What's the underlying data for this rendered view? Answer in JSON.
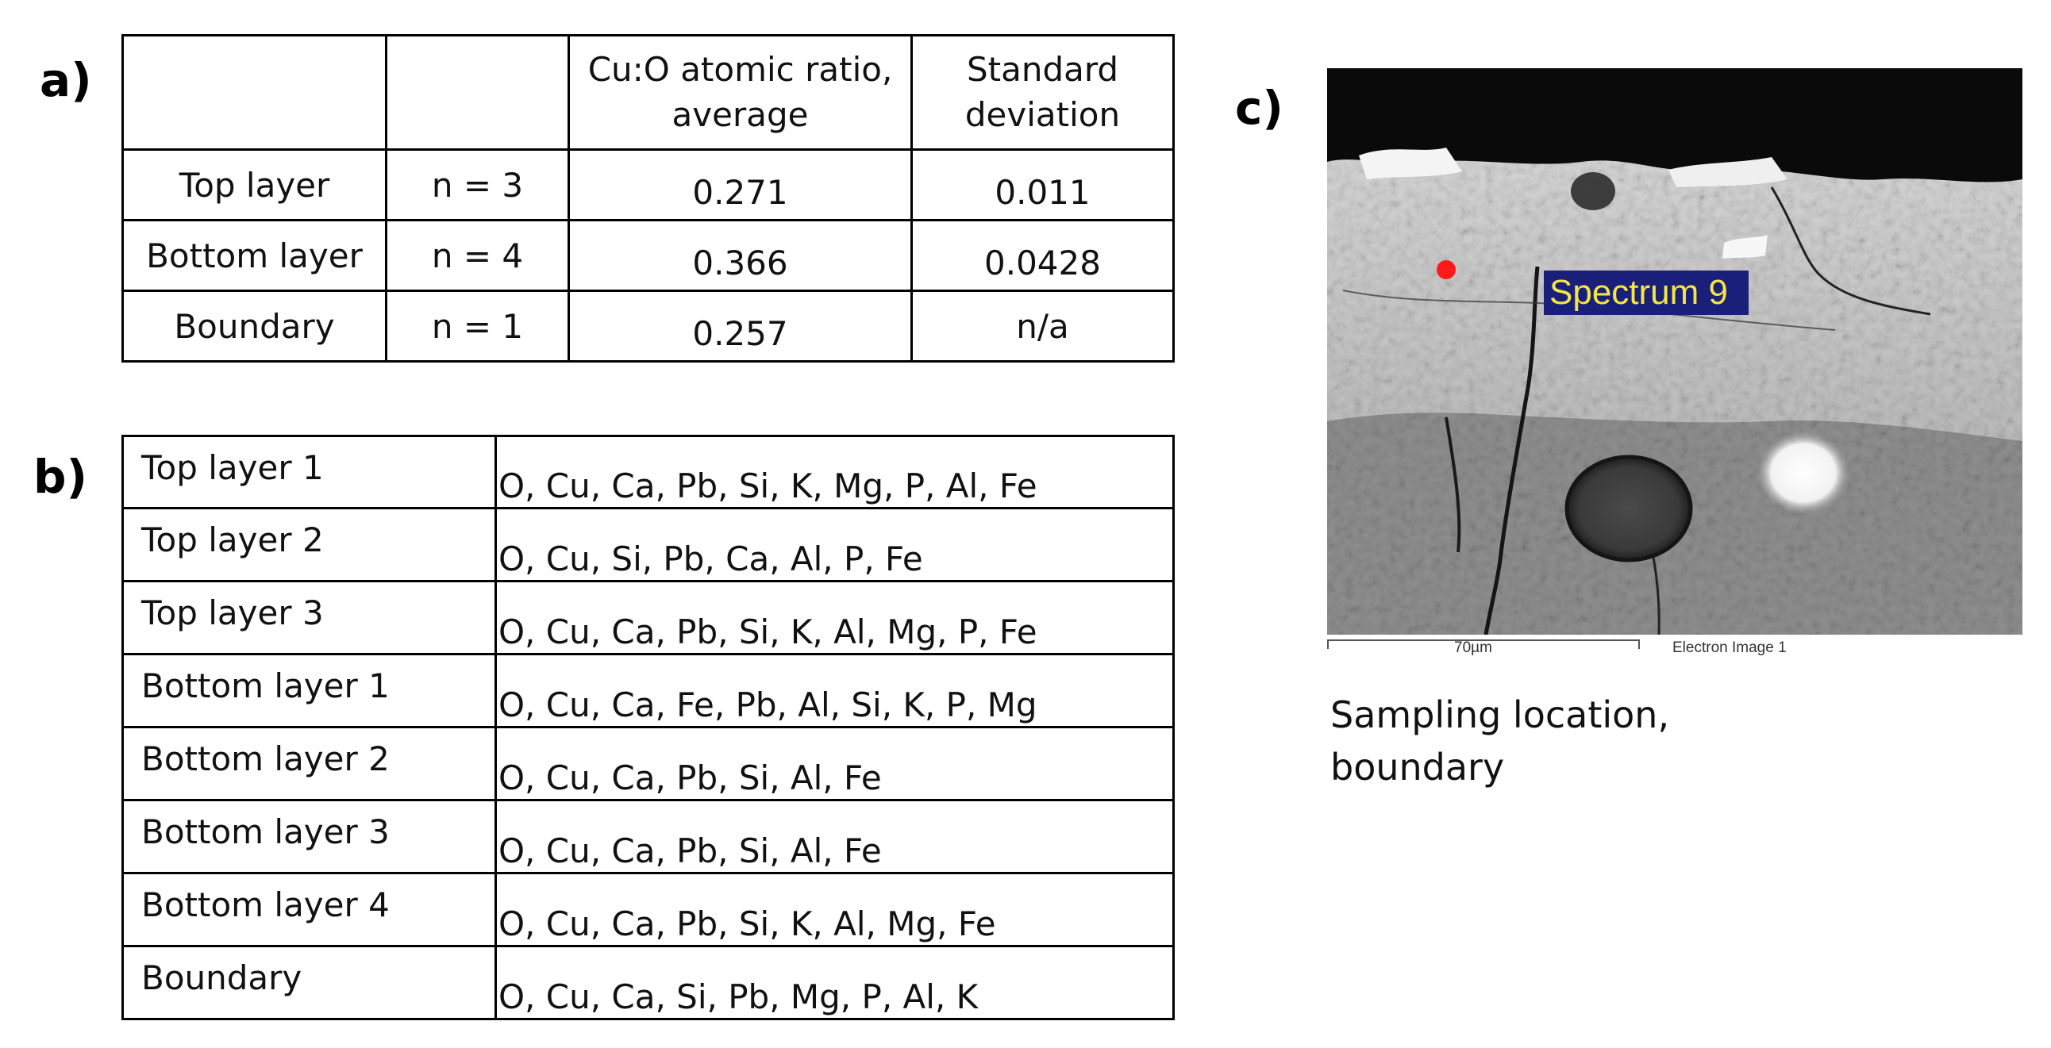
{
  "panels": {
    "a": "a)",
    "b": "b)",
    "c": "c)"
  },
  "table_a": {
    "headers": [
      "",
      "",
      "Cu:O atomic ratio, average",
      "Standard deviation"
    ],
    "header_lines": {
      "col3_line1": "Cu:O atomic ratio,",
      "col3_line2": "average",
      "col4_line1": "Standard",
      "col4_line2": "deviation"
    },
    "rows": [
      {
        "layer": "Top layer",
        "n": "n = 3",
        "ratio": "0.271",
        "sd": "0.011"
      },
      {
        "layer": "Bottom layer",
        "n": "n = 4",
        "ratio": "0.366",
        "sd": "0.0428"
      },
      {
        "layer": "Boundary",
        "n": "n = 1",
        "ratio": "0.257",
        "sd": "n/a"
      }
    ]
  },
  "table_b": {
    "rows": [
      {
        "sample": "Top layer 1",
        "elements": "O, Cu, Ca, Pb, Si, K, Mg, P, Al, Fe"
      },
      {
        "sample": "Top layer 2",
        "elements": "O, Cu, Si, Pb, Ca, Al, P, Fe"
      },
      {
        "sample": "Top layer 3",
        "elements": "O, Cu, Ca, Pb, Si, K, Al, Mg, P, Fe"
      },
      {
        "sample": "Bottom layer 1",
        "elements": "O, Cu, Ca, Fe, Pb, Al, Si, K, P, Mg"
      },
      {
        "sample": "Bottom layer 2",
        "elements": "O, Cu, Ca, Pb, Si, Al, Fe"
      },
      {
        "sample": "Bottom layer 3",
        "elements": "O, Cu, Ca, Pb, Si, Al, Fe"
      },
      {
        "sample": "Bottom layer 4",
        "elements": "O, Cu, Ca, Pb, Si, K, Al, Mg, Fe"
      },
      {
        "sample": "Boundary",
        "elements": "O, Cu, Ca, Si, Pb, Mg, P, Al, K"
      }
    ]
  },
  "sem_image": {
    "spectrum_label": "Spectrum 9",
    "scale_bar": "70µm",
    "image_name": "Electron Image 1",
    "marker_color": "#ff1a1a",
    "label_bg": "#1a1f7a",
    "label_fg": "#f5e642"
  },
  "caption": {
    "line1": "Sampling location,",
    "line2": "boundary"
  }
}
